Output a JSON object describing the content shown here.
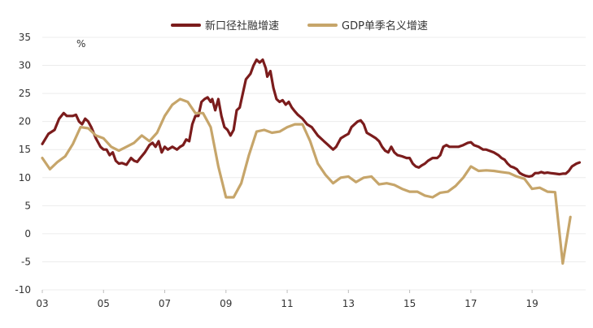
{
  "chart_data": {
    "type": "line",
    "title": "",
    "xlabel": "",
    "ylabel": "",
    "unit_label": "%",
    "ylim": [
      -10,
      35
    ],
    "xlim": [
      2003,
      2020.75
    ],
    "yticks": [
      "-10",
      "-5",
      "0",
      "5",
      "10",
      "15",
      "20",
      "25",
      "30",
      "35"
    ],
    "xticks": [
      {
        "label": "03",
        "x": 2003
      },
      {
        "label": "05",
        "x": 2005
      },
      {
        "label": "07",
        "x": 2007
      },
      {
        "label": "09",
        "x": 2009
      },
      {
        "label": "11",
        "x": 2011
      },
      {
        "label": "13",
        "x": 2013
      },
      {
        "label": "15",
        "x": 2015
      },
      {
        "label": "17",
        "x": 2017
      },
      {
        "label": "19",
        "x": 2019
      }
    ],
    "grid": true,
    "legend_position": "top",
    "series": [
      {
        "name": "新口径社融增速",
        "color": "#7b1c1c",
        "points": [
          [
            2003.0,
            16
          ],
          [
            2003.2,
            17.8
          ],
          [
            2003.4,
            18.5
          ],
          [
            2003.55,
            20.5
          ],
          [
            2003.7,
            21.5
          ],
          [
            2003.8,
            21.0
          ],
          [
            2004.0,
            21.0
          ],
          [
            2004.1,
            21.2
          ],
          [
            2004.2,
            20.0
          ],
          [
            2004.3,
            19.5
          ],
          [
            2004.4,
            20.5
          ],
          [
            2004.5,
            20.0
          ],
          [
            2004.6,
            19.0
          ],
          [
            2004.75,
            17.0
          ],
          [
            2004.9,
            15.5
          ],
          [
            2005.0,
            15.0
          ],
          [
            2005.1,
            15.0
          ],
          [
            2005.2,
            14.0
          ],
          [
            2005.3,
            14.5
          ],
          [
            2005.4,
            13.0
          ],
          [
            2005.5,
            12.5
          ],
          [
            2005.6,
            12.6
          ],
          [
            2005.75,
            12.3
          ],
          [
            2005.9,
            13.5
          ],
          [
            2006.0,
            13.0
          ],
          [
            2006.1,
            12.8
          ],
          [
            2006.2,
            13.5
          ],
          [
            2006.35,
            14.5
          ],
          [
            2006.5,
            15.8
          ],
          [
            2006.6,
            16.2
          ],
          [
            2006.7,
            15.5
          ],
          [
            2006.8,
            16.5
          ],
          [
            2006.9,
            14.5
          ],
          [
            2007.0,
            15.5
          ],
          [
            2007.1,
            15.0
          ],
          [
            2007.25,
            15.5
          ],
          [
            2007.4,
            15.0
          ],
          [
            2007.5,
            15.5
          ],
          [
            2007.6,
            15.8
          ],
          [
            2007.7,
            16.8
          ],
          [
            2007.8,
            16.5
          ],
          [
            2007.9,
            19.5
          ],
          [
            2008.0,
            21.0
          ],
          [
            2008.1,
            21.0
          ],
          [
            2008.2,
            23.5
          ],
          [
            2008.3,
            24.0
          ],
          [
            2008.4,
            24.3
          ],
          [
            2008.5,
            23.5
          ],
          [
            2008.55,
            24.0
          ],
          [
            2008.65,
            22.0
          ],
          [
            2008.75,
            24.0
          ],
          [
            2008.85,
            21.0
          ],
          [
            2008.95,
            19.0
          ],
          [
            2009.05,
            18.5
          ],
          [
            2009.15,
            17.5
          ],
          [
            2009.25,
            18.5
          ],
          [
            2009.35,
            22.0
          ],
          [
            2009.45,
            22.5
          ],
          [
            2009.55,
            25.0
          ],
          [
            2009.65,
            27.5
          ],
          [
            2009.8,
            28.5
          ],
          [
            2009.9,
            30.0
          ],
          [
            2010.0,
            31.0
          ],
          [
            2010.1,
            30.5
          ],
          [
            2010.2,
            31.0
          ],
          [
            2010.3,
            29.5
          ],
          [
            2010.35,
            28.0
          ],
          [
            2010.45,
            29.0
          ],
          [
            2010.55,
            26.0
          ],
          [
            2010.65,
            24.0
          ],
          [
            2010.75,
            23.5
          ],
          [
            2010.85,
            23.8
          ],
          [
            2010.95,
            23.0
          ],
          [
            2011.05,
            23.5
          ],
          [
            2011.15,
            22.5
          ],
          [
            2011.25,
            21.8
          ],
          [
            2011.35,
            21.2
          ],
          [
            2011.5,
            20.5
          ],
          [
            2011.65,
            19.5
          ],
          [
            2011.8,
            19.0
          ],
          [
            2012.0,
            17.5
          ],
          [
            2012.1,
            17.0
          ],
          [
            2012.2,
            16.5
          ],
          [
            2012.3,
            16.0
          ],
          [
            2012.4,
            15.5
          ],
          [
            2012.5,
            15.0
          ],
          [
            2012.6,
            15.5
          ],
          [
            2012.75,
            17.0
          ],
          [
            2012.9,
            17.5
          ],
          [
            2013.0,
            17.8
          ],
          [
            2013.1,
            19.0
          ],
          [
            2013.2,
            19.5
          ],
          [
            2013.3,
            20.0
          ],
          [
            2013.4,
            20.2
          ],
          [
            2013.5,
            19.5
          ],
          [
            2013.6,
            18.0
          ],
          [
            2013.75,
            17.5
          ],
          [
            2013.9,
            17.0
          ],
          [
            2014.0,
            16.5
          ],
          [
            2014.1,
            15.5
          ],
          [
            2014.2,
            14.8
          ],
          [
            2014.3,
            14.5
          ],
          [
            2014.4,
            15.5
          ],
          [
            2014.5,
            14.5
          ],
          [
            2014.6,
            14.0
          ],
          [
            2014.75,
            13.8
          ],
          [
            2014.9,
            13.5
          ],
          [
            2015.0,
            13.5
          ],
          [
            2015.1,
            12.5
          ],
          [
            2015.2,
            12.0
          ],
          [
            2015.3,
            11.8
          ],
          [
            2015.4,
            12.2
          ],
          [
            2015.5,
            12.5
          ],
          [
            2015.6,
            13.0
          ],
          [
            2015.75,
            13.5
          ],
          [
            2015.9,
            13.5
          ],
          [
            2016.0,
            14.0
          ],
          [
            2016.1,
            15.5
          ],
          [
            2016.2,
            15.8
          ],
          [
            2016.3,
            15.5
          ],
          [
            2016.45,
            15.5
          ],
          [
            2016.6,
            15.5
          ],
          [
            2016.75,
            15.8
          ],
          [
            2016.9,
            16.2
          ],
          [
            2017.0,
            16.3
          ],
          [
            2017.1,
            15.8
          ],
          [
            2017.25,
            15.5
          ],
          [
            2017.4,
            15.0
          ],
          [
            2017.5,
            15.0
          ],
          [
            2017.6,
            14.8
          ],
          [
            2017.75,
            14.5
          ],
          [
            2017.9,
            14.0
          ],
          [
            2018.0,
            13.5
          ],
          [
            2018.1,
            13.2
          ],
          [
            2018.2,
            12.5
          ],
          [
            2018.3,
            12.0
          ],
          [
            2018.4,
            11.8
          ],
          [
            2018.5,
            11.5
          ],
          [
            2018.6,
            10.8
          ],
          [
            2018.7,
            10.5
          ],
          [
            2018.8,
            10.3
          ],
          [
            2018.9,
            10.2
          ],
          [
            2019.0,
            10.3
          ],
          [
            2019.1,
            10.8
          ],
          [
            2019.2,
            10.8
          ],
          [
            2019.3,
            11.0
          ],
          [
            2019.4,
            10.8
          ],
          [
            2019.5,
            10.9
          ],
          [
            2019.6,
            10.8
          ],
          [
            2019.75,
            10.7
          ],
          [
            2019.9,
            10.6
          ],
          [
            2020.0,
            10.7
          ],
          [
            2020.1,
            10.7
          ],
          [
            2020.2,
            11.2
          ],
          [
            2020.3,
            12.0
          ],
          [
            2020.45,
            12.5
          ],
          [
            2020.55,
            12.7
          ]
        ]
      },
      {
        "name": "GDP单季名义增速",
        "color": "#c6a56a",
        "points": [
          [
            2003.0,
            13.5
          ],
          [
            2003.25,
            11.5
          ],
          [
            2003.5,
            12.8
          ],
          [
            2003.75,
            13.8
          ],
          [
            2004.0,
            16.0
          ],
          [
            2004.25,
            19.0
          ],
          [
            2004.5,
            18.8
          ],
          [
            2004.75,
            17.5
          ],
          [
            2005.0,
            17.0
          ],
          [
            2005.25,
            15.5
          ],
          [
            2005.5,
            14.8
          ],
          [
            2005.75,
            15.5
          ],
          [
            2006.0,
            16.2
          ],
          [
            2006.25,
            17.5
          ],
          [
            2006.5,
            16.5
          ],
          [
            2006.75,
            18.0
          ],
          [
            2007.0,
            21.0
          ],
          [
            2007.25,
            23.0
          ],
          [
            2007.5,
            24.0
          ],
          [
            2007.75,
            23.5
          ],
          [
            2008.0,
            21.5
          ],
          [
            2008.25,
            21.5
          ],
          [
            2008.5,
            19.0
          ],
          [
            2008.75,
            12.0
          ],
          [
            2009.0,
            6.5
          ],
          [
            2009.25,
            6.5
          ],
          [
            2009.5,
            9.0
          ],
          [
            2009.75,
            14.0
          ],
          [
            2010.0,
            18.2
          ],
          [
            2010.25,
            18.5
          ],
          [
            2010.5,
            18.0
          ],
          [
            2010.75,
            18.2
          ],
          [
            2011.0,
            19.0
          ],
          [
            2011.25,
            19.5
          ],
          [
            2011.5,
            19.5
          ],
          [
            2011.75,
            16.5
          ],
          [
            2012.0,
            12.5
          ],
          [
            2012.25,
            10.5
          ],
          [
            2012.5,
            9.0
          ],
          [
            2012.75,
            10.0
          ],
          [
            2013.0,
            10.2
          ],
          [
            2013.25,
            9.2
          ],
          [
            2013.5,
            10.0
          ],
          [
            2013.75,
            10.2
          ],
          [
            2014.0,
            8.8
          ],
          [
            2014.25,
            9.0
          ],
          [
            2014.5,
            8.7
          ],
          [
            2014.75,
            8.0
          ],
          [
            2015.0,
            7.5
          ],
          [
            2015.25,
            7.5
          ],
          [
            2015.5,
            6.8
          ],
          [
            2015.75,
            6.5
          ],
          [
            2016.0,
            7.3
          ],
          [
            2016.25,
            7.5
          ],
          [
            2016.5,
            8.5
          ],
          [
            2016.75,
            10.0
          ],
          [
            2017.0,
            12.0
          ],
          [
            2017.25,
            11.2
          ],
          [
            2017.5,
            11.3
          ],
          [
            2017.75,
            11.2
          ],
          [
            2018.0,
            11.0
          ],
          [
            2018.25,
            10.8
          ],
          [
            2018.5,
            10.2
          ],
          [
            2018.75,
            9.8
          ],
          [
            2019.0,
            8.0
          ],
          [
            2019.25,
            8.2
          ],
          [
            2019.5,
            7.5
          ],
          [
            2019.75,
            7.4
          ],
          [
            2020.0,
            -5.3
          ],
          [
            2020.25,
            3.0
          ]
        ]
      }
    ]
  }
}
